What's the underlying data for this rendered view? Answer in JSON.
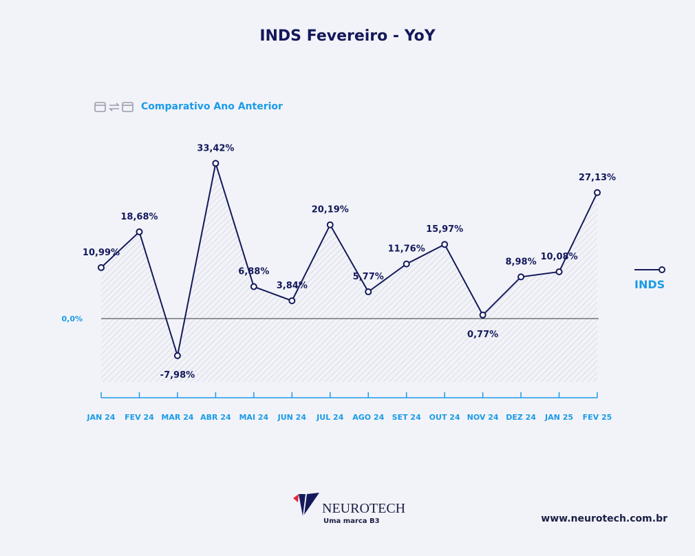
{
  "chart_data": {
    "type": "line",
    "title": "INDS Fevereiro - YoY",
    "subtitle": "Comparativo Ano Anterior",
    "categories": [
      "JAN 24",
      "FEV 24",
      "MAR 24",
      "ABR 24",
      "MAI 24",
      "JUN 24",
      "JUL 24",
      "AGO 24",
      "SET 24",
      "OUT 24",
      "NOV 24",
      "DEZ 24",
      "JAN 25",
      "FEV 25"
    ],
    "series": [
      {
        "name": "INDS",
        "values": [
          10.99,
          18.68,
          -7.98,
          33.42,
          6.88,
          3.84,
          20.19,
          5.77,
          11.76,
          15.97,
          0.77,
          8.98,
          10.08,
          27.13
        ],
        "labels": [
          "10,99%",
          "18,68%",
          "-7,98%",
          "33,42%",
          "6,88%",
          "3,84%",
          "20,19%",
          "5,77%",
          "11,76%",
          "15,97%",
          "0,77%",
          "8,98%",
          "10,08%",
          "27,13%"
        ]
      }
    ],
    "y_tick_label": "0,0%",
    "legend": "right",
    "colors": {
      "line": "#13195a",
      "accent": "#1a9be8"
    }
  },
  "footer": {
    "brand": "NEUROTECH",
    "tagline": "Uma marca B3",
    "url": "www.neurotech.com.br"
  }
}
